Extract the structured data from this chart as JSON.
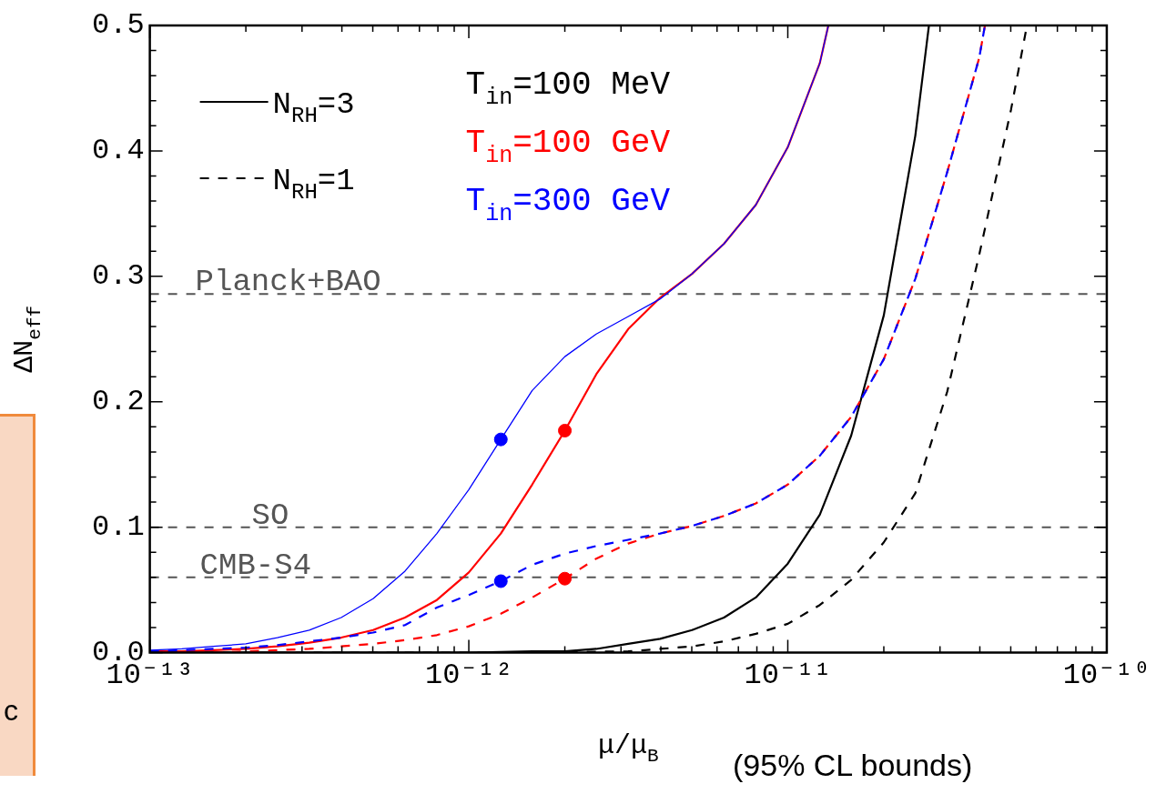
{
  "chart_data": {
    "type": "line",
    "xlabel": "μ/μ$_{B}$",
    "ylabel": "ΔN$_{eff}$",
    "log": "x",
    "legend": "top",
    "xlim": [
      1e-13,
      1e-10
    ],
    "ylim": [
      0,
      0.5
    ],
    "xticks": [
      {
        "value": 1e-13,
        "label": "10⁻¹³"
      },
      {
        "value": 1e-12,
        "label": "10⁻¹²"
      },
      {
        "value": 1e-11,
        "label": "10⁻¹¹"
      },
      {
        "value": 1e-10,
        "label": "10⁻¹⁰"
      }
    ],
    "yticks": [
      {
        "value": 0,
        "label": "0.0"
      },
      0.1,
      0.2,
      0.3,
      0.4,
      0.5
    ],
    "series": [
      {
        "name": "T$_{in}$=100 MeV",
        "color": "#000000",
        "line_style": "solid",
        "x": [
          1e-13,
          3.16e-13,
          1e-12,
          1.58e-12,
          2e-12,
          2.51e-12,
          3.16e-12,
          3.98e-12,
          5.01e-12,
          6.31e-12,
          7.94e-12,
          1e-11,
          1.26e-11,
          1.58e-11,
          2e-11,
          2.51e-11,
          2.77e-11
        ],
        "values": [
          0,
          0,
          0,
          0.001,
          0.001,
          0.003,
          0.007,
          0.011,
          0.018,
          0.028,
          0.044,
          0.071,
          0.11,
          0.173,
          0.269,
          0.412,
          0.5
        ]
      },
      {
        "name": "T$_{in}$=100 GeV",
        "color": "#ff0000",
        "line_style": "solid",
        "x": [
          1e-13,
          1.26e-13,
          1.58e-13,
          2e-13,
          2.51e-13,
          3.16e-13,
          3.98e-13,
          5.01e-13,
          6.31e-13,
          7.94e-13,
          1e-12,
          1.26e-12,
          1.58e-12,
          2e-12,
          2.51e-12,
          3.16e-12,
          3.98e-12,
          5.01e-12,
          6.31e-12,
          7.94e-12,
          1e-11,
          1.26e-11,
          1.34e-11
        ],
        "values": [
          0.001,
          0.001,
          0.002,
          0.003,
          0.005,
          0.008,
          0.012,
          0.018,
          0.028,
          0.042,
          0.064,
          0.095,
          0.134,
          0.177,
          0.222,
          0.258,
          0.283,
          0.302,
          0.326,
          0.357,
          0.403,
          0.47,
          0.5
        ]
      },
      {
        "name": "T$_{in}$=300 GeV",
        "color": "#0000ff",
        "line_style": "solid",
        "x": [
          1e-13,
          1.26e-13,
          1.58e-13,
          2e-13,
          2.51e-13,
          3.16e-13,
          3.98e-13,
          5.01e-13,
          6.31e-13,
          7.94e-13,
          1e-12,
          1.26e-12,
          1.58e-12,
          2e-12,
          2.51e-12,
          3.16e-12,
          3.98e-12,
          5.01e-12,
          6.31e-12,
          7.94e-12,
          1e-11,
          1.26e-11,
          1.34e-11
        ],
        "values": [
          0.002,
          0.003,
          0.005,
          0.007,
          0.012,
          0.018,
          0.028,
          0.043,
          0.065,
          0.095,
          0.13,
          0.17,
          0.209,
          0.236,
          0.254,
          0.268,
          0.282,
          0.302,
          0.326,
          0.357,
          0.403,
          0.47,
          0.5
        ]
      },
      {
        "color": "#000000",
        "line_style": "dashed",
        "x": [
          1e-13,
          1e-12,
          3.16e-12,
          3.98e-12,
          5.01e-12,
          6.31e-12,
          7.94e-12,
          1e-11,
          1.26e-11,
          1.58e-11,
          2e-11,
          2.51e-11,
          3.16e-11,
          3.98e-11,
          5.01e-11,
          5.62e-11
        ],
        "values": [
          0,
          0,
          0.001,
          0.003,
          0.005,
          0.009,
          0.015,
          0.023,
          0.038,
          0.058,
          0.088,
          0.127,
          0.208,
          0.317,
          0.433,
          0.5
        ]
      },
      {
        "color": "#ff0000",
        "line_style": "dashed",
        "x": [
          1e-13,
          1.26e-13,
          1.58e-13,
          2e-13,
          2.51e-13,
          3.16e-13,
          3.98e-13,
          5.01e-13,
          6.31e-13,
          7.94e-13,
          1e-12,
          1.26e-12,
          1.58e-12,
          2e-12,
          2.51e-12,
          3.16e-12,
          3.98e-12,
          5.01e-12,
          6.31e-12,
          7.94e-12,
          1e-11,
          1.26e-11,
          1.58e-11,
          2e-11,
          2.51e-11,
          3.16e-11,
          3.98e-11,
          4.15e-11
        ],
        "values": [
          0,
          0,
          0,
          0.001,
          0.002,
          0.003,
          0.005,
          0.007,
          0.01,
          0.014,
          0.021,
          0.031,
          0.044,
          0.059,
          0.075,
          0.087,
          0.095,
          0.101,
          0.109,
          0.119,
          0.134,
          0.157,
          0.188,
          0.234,
          0.298,
          0.383,
          0.474,
          0.5
        ]
      },
      {
        "color": "#0000ff",
        "line_style": "dashed",
        "x": [
          1e-13,
          1.26e-13,
          1.58e-13,
          2e-13,
          2.51e-13,
          3.16e-13,
          3.98e-13,
          5.01e-13,
          6.31e-13,
          7.94e-13,
          1e-12,
          1.26e-12,
          1.58e-12,
          2e-12,
          2.51e-12,
          3.16e-12,
          3.98e-12,
          5.01e-12,
          6.31e-12,
          7.94e-12,
          1e-11,
          1.26e-11,
          1.58e-11,
          2e-11,
          2.51e-11,
          3.16e-11,
          3.98e-11,
          4.15e-11
        ],
        "values": [
          0.001,
          0.002,
          0.003,
          0.004,
          0.006,
          0.009,
          0.012,
          0.016,
          0.022,
          0.036,
          0.046,
          0.057,
          0.07,
          0.079,
          0.085,
          0.09,
          0.095,
          0.101,
          0.109,
          0.119,
          0.134,
          0.157,
          0.188,
          0.234,
          0.298,
          0.383,
          0.474,
          0.5
        ]
      },
      {
        "type": "scatter",
        "color": "#0000ff",
        "marker": "circle",
        "x": [
          1.26e-12,
          1.26e-12
        ],
        "values": [
          0.17,
          0.057
        ]
      },
      {
        "type": "scatter",
        "color": "#ff0000",
        "marker": "circle",
        "x": [
          2e-12,
          2e-12
        ],
        "values": [
          0.177,
          0.059
        ]
      }
    ],
    "ref_lines": [
      {
        "axis": "y",
        "value": 0.286,
        "label": "Planck+BAO",
        "color": "#555555",
        "line_style": "dashed"
      },
      {
        "axis": "y",
        "value": 0.1,
        "label": "SO",
        "color": "#555555",
        "line_style": "dashed"
      },
      {
        "axis": "y",
        "value": 0.06,
        "label": "CMB-S4",
        "color": "#555555",
        "line_style": "dashed"
      }
    ],
    "annotations": [
      "N$_{RH}$=3",
      "N$_{RH}$=1",
      "(95% CL bounds)",
      "c"
    ]
  }
}
